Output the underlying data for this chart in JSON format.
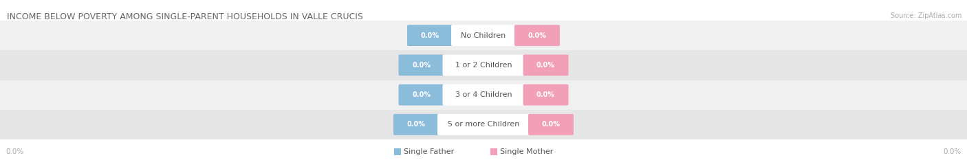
{
  "title": "INCOME BELOW POVERTY AMONG SINGLE-PARENT HOUSEHOLDS IN VALLE CRUCIS",
  "source": "Source: ZipAtlas.com",
  "categories": [
    "No Children",
    "1 or 2 Children",
    "3 or 4 Children",
    "5 or more Children"
  ],
  "father_values": [
    "0.0%",
    "0.0%",
    "0.0%",
    "0.0%"
  ],
  "mother_values": [
    "0.0%",
    "0.0%",
    "0.0%",
    "0.0%"
  ],
  "father_color": "#8BBCDA",
  "mother_color": "#F2A0B8",
  "row_bg_colors": [
    "#F0F0F0",
    "#E6E6E6"
  ],
  "title_color": "#666666",
  "source_color": "#AAAAAA",
  "value_text_color": "#FFFFFF",
  "category_text_color": "#555555",
  "axis_label_color": "#AAAAAA",
  "figsize": [
    14.06,
    2.33
  ],
  "dpi": 100,
  "x_axis_label_left": "0.0%",
  "x_axis_label_right": "0.0%",
  "legend_labels": [
    "Single Father",
    "Single Mother"
  ]
}
